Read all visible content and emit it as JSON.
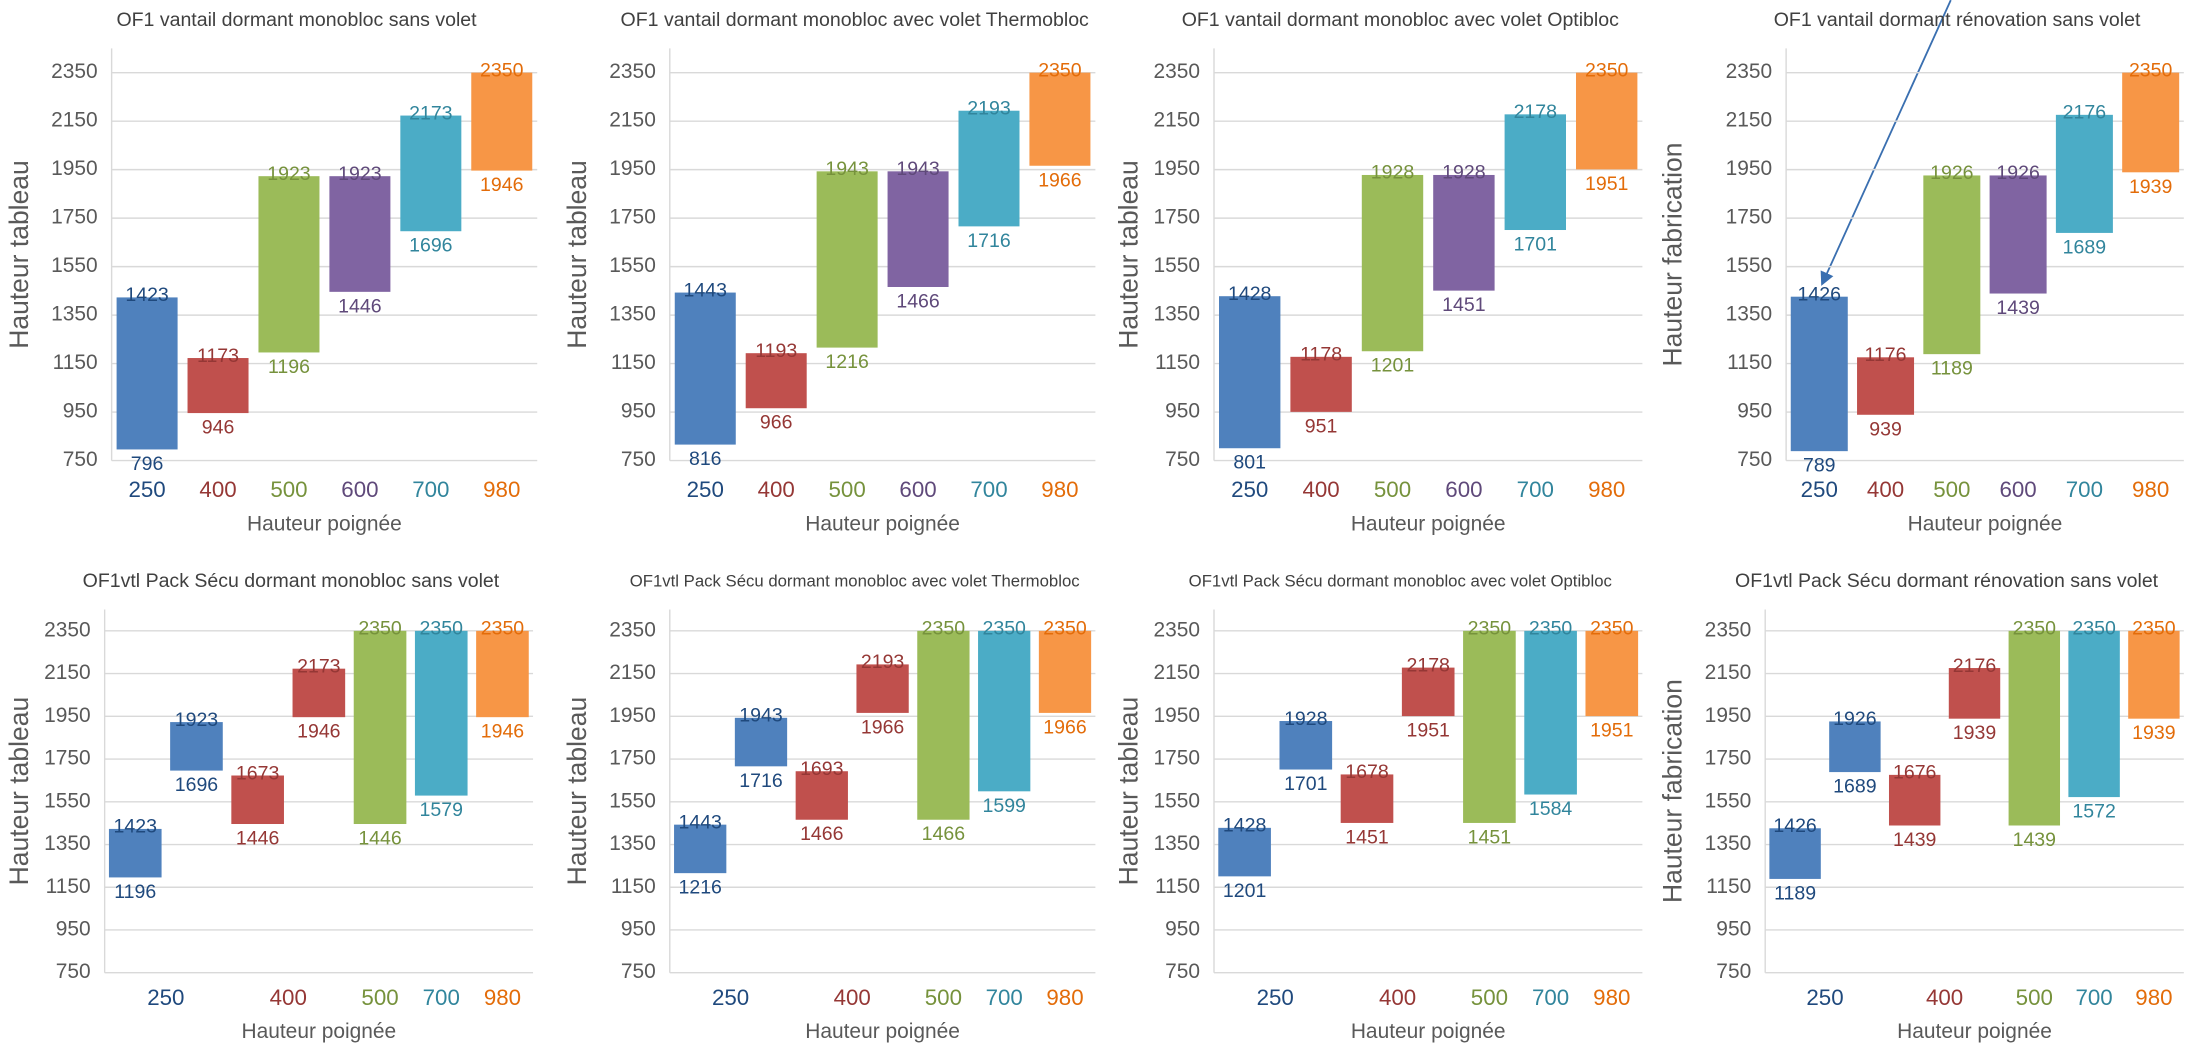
{
  "chart_data": [
    {
      "type": "floating-bar",
      "title": "OF1 vantail dormant monobloc sans volet",
      "ylabel": "Hauteur tableau",
      "xlabel": "Hauteur poignée",
      "categories": [
        "250",
        "400",
        "500",
        "600",
        "700",
        "980"
      ],
      "colors": [
        "#4f81bd",
        "#c0504d",
        "#9bbb59",
        "#8064a2",
        "#4bacc6",
        "#f79646"
      ],
      "label_colors": [
        "#1f497d",
        "#953735",
        "#76923c",
        "#5f497a",
        "#31859c",
        "#e36c09"
      ],
      "bars": [
        {
          "cat": 0,
          "low": 796,
          "high": 1423
        },
        {
          "cat": 1,
          "low": 946,
          "high": 1173
        },
        {
          "cat": 2,
          "low": 1196,
          "high": 1923
        },
        {
          "cat": 3,
          "low": 1446,
          "high": 1923
        },
        {
          "cat": 4,
          "low": 1696,
          "high": 2173
        },
        {
          "cat": 5,
          "low": 1946,
          "high": 2350
        }
      ],
      "ylim": [
        750,
        2450
      ],
      "yticks": [
        750,
        950,
        1150,
        1350,
        1550,
        1750,
        1950,
        2150,
        2350
      ],
      "grid": true
    },
    {
      "type": "floating-bar",
      "title": "OF1 vantail dormant monobloc avec volet Thermobloc",
      "ylabel": "Hauteur tableau",
      "xlabel": "Hauteur poignée",
      "categories": [
        "250",
        "400",
        "500",
        "600",
        "700",
        "980"
      ],
      "colors": [
        "#4f81bd",
        "#c0504d",
        "#9bbb59",
        "#8064a2",
        "#4bacc6",
        "#f79646"
      ],
      "label_colors": [
        "#1f497d",
        "#953735",
        "#76923c",
        "#5f497a",
        "#31859c",
        "#e36c09"
      ],
      "bars": [
        {
          "cat": 0,
          "low": 816,
          "high": 1443
        },
        {
          "cat": 1,
          "low": 966,
          "high": 1193
        },
        {
          "cat": 2,
          "low": 1216,
          "high": 1943
        },
        {
          "cat": 3,
          "low": 1466,
          "high": 1943
        },
        {
          "cat": 4,
          "low": 1716,
          "high": 2193
        },
        {
          "cat": 5,
          "low": 1966,
          "high": 2350
        }
      ],
      "ylim": [
        750,
        2450
      ],
      "yticks": [
        750,
        950,
        1150,
        1350,
        1550,
        1750,
        1950,
        2150,
        2350
      ],
      "grid": true
    },
    {
      "type": "floating-bar",
      "title": "OF1 vantail dormant monobloc avec volet Optibloc",
      "ylabel": "Hauteur tableau",
      "xlabel": "Hauteur poignée",
      "categories": [
        "250",
        "400",
        "500",
        "600",
        "700",
        "980"
      ],
      "colors": [
        "#4f81bd",
        "#c0504d",
        "#9bbb59",
        "#8064a2",
        "#4bacc6",
        "#f79646"
      ],
      "label_colors": [
        "#1f497d",
        "#953735",
        "#76923c",
        "#5f497a",
        "#31859c",
        "#e36c09"
      ],
      "bars": [
        {
          "cat": 0,
          "low": 801,
          "high": 1428
        },
        {
          "cat": 1,
          "low": 951,
          "high": 1178
        },
        {
          "cat": 2,
          "low": 1201,
          "high": 1928
        },
        {
          "cat": 3,
          "low": 1451,
          "high": 1928
        },
        {
          "cat": 4,
          "low": 1701,
          "high": 2178
        },
        {
          "cat": 5,
          "low": 1951,
          "high": 2350
        }
      ],
      "ylim": [
        750,
        2450
      ],
      "yticks": [
        750,
        950,
        1150,
        1350,
        1550,
        1750,
        1950,
        2150,
        2350
      ],
      "grid": true
    },
    {
      "type": "floating-bar",
      "title": "OF1 vantail dormant rénovation sans volet",
      "ylabel": "Hauteur fabrication",
      "xlabel": "Hauteur poignée",
      "categories": [
        "250",
        "400",
        "500",
        "600",
        "700",
        "980"
      ],
      "colors": [
        "#4f81bd",
        "#c0504d",
        "#9bbb59",
        "#8064a2",
        "#4bacc6",
        "#f79646"
      ],
      "label_colors": [
        "#1f497d",
        "#953735",
        "#76923c",
        "#5f497a",
        "#31859c",
        "#e36c09"
      ],
      "bars": [
        {
          "cat": 0,
          "low": 789,
          "high": 1426
        },
        {
          "cat": 1,
          "low": 939,
          "high": 1176
        },
        {
          "cat": 2,
          "low": 1189,
          "high": 1926
        },
        {
          "cat": 3,
          "low": 1439,
          "high": 1926
        },
        {
          "cat": 4,
          "low": 1689,
          "high": 2176
        },
        {
          "cat": 5,
          "low": 1939,
          "high": 2350
        }
      ],
      "ylim": [
        750,
        2450
      ],
      "yticks": [
        750,
        950,
        1150,
        1350,
        1550,
        1750,
        1950,
        2150,
        2350
      ],
      "grid": true
    },
    {
      "type": "floating-bar",
      "title": "OF1vtl Pack Sécu dormant monobloc sans volet",
      "ylabel": "Hauteur tableau",
      "xlabel": "Hauteur poignée",
      "categories": [
        "250",
        "400",
        "500",
        "700",
        "980"
      ],
      "colors": [
        "#4f81bd",
        "#c0504d",
        "#9bbb59",
        "#4bacc6",
        "#f79646"
      ],
      "label_colors": [
        "#1f497d",
        "#953735",
        "#76923c",
        "#31859c",
        "#e36c09"
      ],
      "bars": [
        {
          "cat": 0,
          "low": 1196,
          "high": 1423
        },
        {
          "cat": 0,
          "low": 1696,
          "high": 1923
        },
        {
          "cat": 1,
          "low": 1446,
          "high": 1673
        },
        {
          "cat": 1,
          "low": 1946,
          "high": 2173
        },
        {
          "cat": 2,
          "low": 1446,
          "high": 2350
        },
        {
          "cat": 3,
          "low": 1579,
          "high": 2350
        },
        {
          "cat": 4,
          "low": 1946,
          "high": 2350
        }
      ],
      "ylim": [
        750,
        2450
      ],
      "yticks": [
        750,
        950,
        1150,
        1350,
        1550,
        1750,
        1950,
        2150,
        2350
      ],
      "grid": true
    },
    {
      "type": "floating-bar",
      "title": "OF1vtl Pack Sécu dormant monobloc avec volet Thermobloc",
      "ylabel": "Hauteur tableau",
      "xlabel": "Hauteur poignée",
      "categories": [
        "250",
        "400",
        "500",
        "700",
        "980"
      ],
      "colors": [
        "#4f81bd",
        "#c0504d",
        "#9bbb59",
        "#4bacc6",
        "#f79646"
      ],
      "label_colors": [
        "#1f497d",
        "#953735",
        "#76923c",
        "#31859c",
        "#e36c09"
      ],
      "bars": [
        {
          "cat": 0,
          "low": 1216,
          "high": 1443
        },
        {
          "cat": 0,
          "low": 1716,
          "high": 1943
        },
        {
          "cat": 1,
          "low": 1466,
          "high": 1693
        },
        {
          "cat": 1,
          "low": 1966,
          "high": 2193
        },
        {
          "cat": 2,
          "low": 1466,
          "high": 2350
        },
        {
          "cat": 3,
          "low": 1599,
          "high": 2350
        },
        {
          "cat": 4,
          "low": 1966,
          "high": 2350
        }
      ],
      "ylim": [
        750,
        2450
      ],
      "yticks": [
        750,
        950,
        1150,
        1350,
        1550,
        1750,
        1950,
        2150,
        2350
      ],
      "grid": true
    },
    {
      "type": "floating-bar",
      "title": "OF1vtl Pack Sécu dormant monobloc  avec volet Optibloc",
      "ylabel": "Hauteur tableau",
      "xlabel": "Hauteur poignée",
      "categories": [
        "250",
        "400",
        "500",
        "700",
        "980"
      ],
      "colors": [
        "#4f81bd",
        "#c0504d",
        "#9bbb59",
        "#4bacc6",
        "#f79646"
      ],
      "label_colors": [
        "#1f497d",
        "#953735",
        "#76923c",
        "#31859c",
        "#e36c09"
      ],
      "bars": [
        {
          "cat": 0,
          "low": 1201,
          "high": 1428
        },
        {
          "cat": 0,
          "low": 1701,
          "high": 1928
        },
        {
          "cat": 1,
          "low": 1451,
          "high": 1678
        },
        {
          "cat": 1,
          "low": 1951,
          "high": 2178
        },
        {
          "cat": 2,
          "low": 1451,
          "high": 2350
        },
        {
          "cat": 3,
          "low": 1584,
          "high": 2350
        },
        {
          "cat": 4,
          "low": 1951,
          "high": 2350
        }
      ],
      "ylim": [
        750,
        2450
      ],
      "yticks": [
        750,
        950,
        1150,
        1350,
        1550,
        1750,
        1950,
        2150,
        2350
      ],
      "grid": true
    },
    {
      "type": "floating-bar",
      "title": "OF1vtl Pack Sécu dormant rénovation sans volet",
      "ylabel": "Hauteur fabrication",
      "xlabel": "Hauteur poignée",
      "categories": [
        "250",
        "400",
        "500",
        "700",
        "980"
      ],
      "colors": [
        "#4f81bd",
        "#c0504d",
        "#9bbb59",
        "#4bacc6",
        "#f79646"
      ],
      "label_colors": [
        "#1f497d",
        "#953735",
        "#76923c",
        "#31859c",
        "#e36c09"
      ],
      "bars": [
        {
          "cat": 0,
          "low": 1189,
          "high": 1426
        },
        {
          "cat": 0,
          "low": 1689,
          "high": 1926
        },
        {
          "cat": 1,
          "low": 1439,
          "high": 1676
        },
        {
          "cat": 1,
          "low": 1939,
          "high": 2176
        },
        {
          "cat": 2,
          "low": 1439,
          "high": 2350
        },
        {
          "cat": 3,
          "low": 1572,
          "high": 2350
        },
        {
          "cat": 4,
          "low": 1939,
          "high": 2350
        }
      ],
      "ylim": [
        750,
        2450
      ],
      "yticks": [
        750,
        950,
        1150,
        1350,
        1550,
        1750,
        1950,
        2150,
        2350
      ],
      "grid": true
    }
  ]
}
